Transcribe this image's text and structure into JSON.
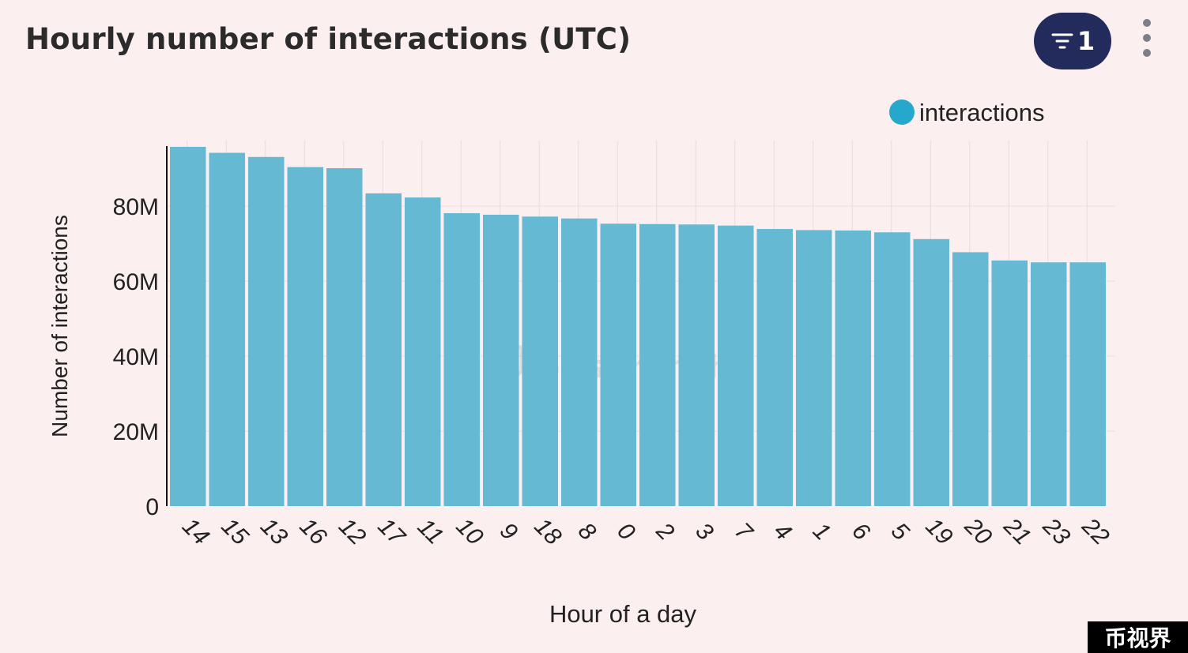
{
  "header": {
    "title": "Hourly number of interactions (UTC)",
    "filter_count": "1"
  },
  "watermark": {
    "text": "bitsCrunch"
  },
  "badge": {
    "text": "币视界"
  },
  "chart_data": {
    "type": "bar",
    "title": "Hourly number of interactions (UTC)",
    "xlabel": "Hour of a day",
    "ylabel": "Number of interactions",
    "categories": [
      "14",
      "15",
      "13",
      "16",
      "12",
      "17",
      "11",
      "10",
      "9",
      "18",
      "8",
      "0",
      "2",
      "3",
      "7",
      "4",
      "1",
      "6",
      "5",
      "19",
      "20",
      "21",
      "23",
      "22"
    ],
    "series": [
      {
        "name": "interactions",
        "color": "#65b9d3",
        "values": [
          95.8,
          94.2,
          93.1,
          90.4,
          90.1,
          83.4,
          82.3,
          78.1,
          77.7,
          77.2,
          76.7,
          75.3,
          75.2,
          75.1,
          74.8,
          73.9,
          73.6,
          73.5,
          73.0,
          71.2,
          67.7,
          65.5,
          65.0,
          65.0
        ]
      }
    ],
    "y_unit_suffix": "M",
    "yticks": [
      "0",
      "20M",
      "40M",
      "60M",
      "80M"
    ],
    "ytick_values": [
      0,
      20,
      40,
      60,
      80
    ],
    "ylim": [
      0,
      96
    ],
    "legend": {
      "position": "top-right",
      "marker_color": "#26a7cc"
    },
    "grid": true
  }
}
